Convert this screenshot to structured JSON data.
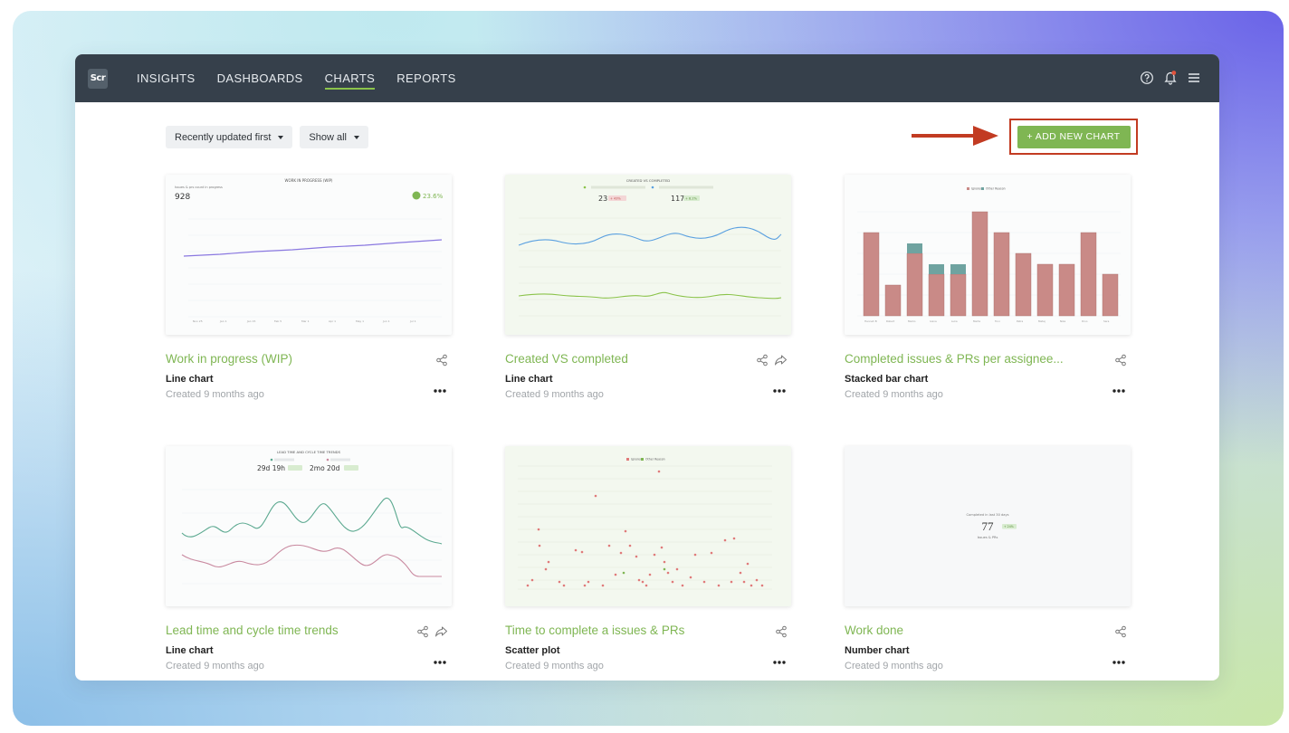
{
  "logo": "Scr",
  "nav": {
    "items": [
      {
        "label": "INSIGHTS"
      },
      {
        "label": "DASHBOARDS"
      },
      {
        "label": "CHARTS",
        "active": true
      },
      {
        "label": "REPORTS"
      }
    ]
  },
  "header_icons": [
    "help-icon",
    "bell-icon",
    "menu-icon"
  ],
  "filters": {
    "sort": "Recently updated first",
    "show": "Show all"
  },
  "add_button": "+ ADD NEW CHART",
  "accent_color": "#7fb653",
  "highlight_color": "#c23b22",
  "cards": [
    {
      "title": "Work in progress (WIP)",
      "type": "Line chart",
      "created": "Created 9 months ago",
      "thumb": {
        "heading": "WORK IN PROGRESS (WIP)",
        "sub": "Issues & prs count in progress",
        "value": "928",
        "change": "23.6%"
      }
    },
    {
      "title": "Created VS completed",
      "type": "Line chart",
      "created": "Created 9 months ago",
      "thumb": {
        "heading": "CREATED VS COMPLETED",
        "value_a": "23",
        "badge_a": "+ 43%",
        "value_b": "117",
        "badge_b": "+ 8.2%"
      }
    },
    {
      "title": "Completed issues & PRs per assignee...",
      "type": "Stacked bar chart",
      "created": "Created 9 months ago",
      "thumb": {
        "legend_a": "Ignored",
        "legend_b": "Other Reason"
      }
    },
    {
      "title": "Lead time and cycle time trends",
      "type": "Line chart",
      "created": "Created 9 months ago",
      "thumb": {
        "heading": "LEAD TIME AND CYCLE TIME TRENDS",
        "value_a": "29d 19h",
        "value_b": "2mo 20d"
      }
    },
    {
      "title": "Time to complete a issues & PRs",
      "type": "Scatter plot",
      "created": "Created 9 months ago",
      "thumb": {
        "legend_a": "Ignored",
        "legend_b": "Other Reason"
      }
    },
    {
      "title": "Work done",
      "type": "Number chart",
      "created": "Created 9 months ago",
      "thumb": {
        "caption": "Completed in last 30 days",
        "value": "77",
        "badge": "+ 24%",
        "unit": "Issues & PRs"
      }
    }
  ]
}
